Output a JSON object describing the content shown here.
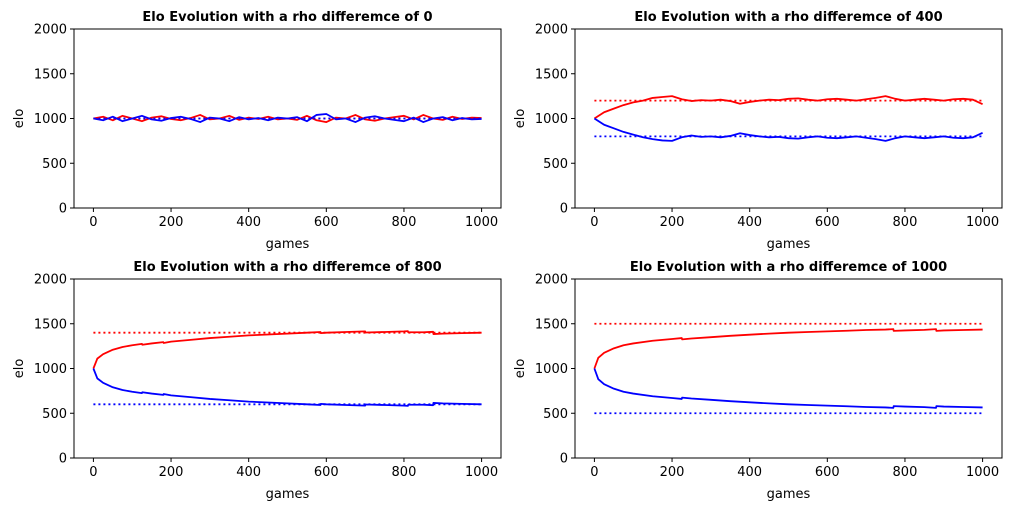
{
  "colors": {
    "series_a": "#ff0000",
    "series_b": "#0000ff",
    "axes": "#000000",
    "background": "#ffffff"
  },
  "chart_data": [
    {
      "type": "line",
      "title": "Elo Evolution with a rho differemce of 0",
      "xlabel": "games",
      "ylabel": "elo",
      "xlim": [
        -50,
        1050
      ],
      "ylim": [
        0,
        2000
      ],
      "xticks": [
        0,
        200,
        400,
        600,
        800,
        1000
      ],
      "yticks": [
        0,
        500,
        1000,
        1500,
        2000
      ],
      "grid": false,
      "series": [
        {
          "color": "#ff0000",
          "style": "solid",
          "x": [
            0,
            25,
            50,
            75,
            100,
            125,
            150,
            175,
            200,
            225,
            250,
            275,
            300,
            325,
            350,
            375,
            400,
            425,
            450,
            475,
            500,
            525,
            550,
            575,
            600,
            625,
            650,
            675,
            700,
            725,
            750,
            775,
            800,
            825,
            850,
            875,
            900,
            925,
            950,
            975,
            1000
          ],
          "values": [
            1000,
            1020,
            980,
            1030,
            1000,
            970,
            1010,
            1025,
            995,
            980,
            1005,
            1040,
            990,
            1000,
            1030,
            985,
            1010,
            995,
            1020,
            990,
            1000,
            985,
            1030,
            980,
            960,
            1010,
            1000,
            1040,
            990,
            975,
            1000,
            1015,
            1030,
            990,
            1040,
            1000,
            985,
            1020,
            995,
            1010,
            1005
          ]
        },
        {
          "color": "#0000ff",
          "style": "solid",
          "x": [
            0,
            25,
            50,
            75,
            100,
            125,
            150,
            175,
            200,
            225,
            250,
            275,
            300,
            325,
            350,
            375,
            400,
            425,
            450,
            475,
            500,
            525,
            550,
            575,
            600,
            625,
            650,
            675,
            700,
            725,
            750,
            775,
            800,
            825,
            850,
            875,
            900,
            925,
            950,
            975,
            1000
          ],
          "values": [
            1000,
            980,
            1020,
            970,
            1000,
            1030,
            990,
            975,
            1005,
            1020,
            995,
            960,
            1010,
            1000,
            970,
            1015,
            990,
            1005,
            980,
            1010,
            1000,
            1015,
            970,
            1040,
            1050,
            990,
            1000,
            960,
            1010,
            1025,
            1000,
            985,
            970,
            1010,
            960,
            1000,
            1015,
            980,
            1005,
            990,
            995
          ]
        },
        {
          "color": "#ff0000",
          "style": "dotted",
          "x": [
            0,
            1000
          ],
          "values": [
            1000,
            1000
          ]
        },
        {
          "color": "#0000ff",
          "style": "dotted",
          "x": [
            0,
            1000
          ],
          "values": [
            1000,
            1000
          ]
        }
      ]
    },
    {
      "type": "line",
      "title": "Elo Evolution with a rho differemce of 400",
      "xlabel": "games",
      "ylabel": "elo",
      "xlim": [
        -50,
        1050
      ],
      "ylim": [
        0,
        2000
      ],
      "xticks": [
        0,
        200,
        400,
        600,
        800,
        1000
      ],
      "yticks": [
        0,
        500,
        1000,
        1500,
        2000
      ],
      "grid": false,
      "series": [
        {
          "color": "#ff0000",
          "style": "solid",
          "x": [
            0,
            25,
            50,
            75,
            100,
            125,
            150,
            175,
            200,
            225,
            250,
            275,
            300,
            325,
            350,
            375,
            400,
            425,
            450,
            475,
            500,
            525,
            550,
            575,
            600,
            625,
            650,
            675,
            700,
            725,
            750,
            775,
            800,
            825,
            850,
            875,
            900,
            925,
            950,
            975,
            1000
          ],
          "values": [
            1000,
            1070,
            1110,
            1150,
            1180,
            1200,
            1230,
            1240,
            1250,
            1215,
            1195,
            1205,
            1200,
            1210,
            1195,
            1165,
            1185,
            1200,
            1210,
            1205,
            1220,
            1225,
            1210,
            1200,
            1215,
            1220,
            1210,
            1200,
            1215,
            1230,
            1250,
            1220,
            1200,
            1210,
            1220,
            1210,
            1200,
            1215,
            1220,
            1210,
            1160
          ]
        },
        {
          "color": "#0000ff",
          "style": "solid",
          "x": [
            0,
            25,
            50,
            75,
            100,
            125,
            150,
            175,
            200,
            225,
            250,
            275,
            300,
            325,
            350,
            375,
            400,
            425,
            450,
            475,
            500,
            525,
            550,
            575,
            600,
            625,
            650,
            675,
            700,
            725,
            750,
            775,
            800,
            825,
            850,
            875,
            900,
            925,
            950,
            975,
            1000
          ],
          "values": [
            1000,
            930,
            890,
            850,
            820,
            790,
            770,
            755,
            750,
            790,
            810,
            795,
            800,
            790,
            805,
            835,
            815,
            800,
            790,
            795,
            780,
            775,
            790,
            800,
            785,
            780,
            790,
            800,
            785,
            770,
            750,
            780,
            800,
            790,
            780,
            790,
            800,
            785,
            780,
            790,
            840
          ]
        },
        {
          "color": "#ff0000",
          "style": "dotted",
          "x": [
            0,
            1000
          ],
          "values": [
            1200,
            1200
          ]
        },
        {
          "color": "#0000ff",
          "style": "dotted",
          "x": [
            0,
            1000
          ],
          "values": [
            800,
            800
          ]
        }
      ]
    },
    {
      "type": "line",
      "title": "Elo Evolution with a rho differemce of 800",
      "xlabel": "games",
      "ylabel": "elo",
      "xlim": [
        -50,
        1050
      ],
      "ylim": [
        0,
        2000
      ],
      "xticks": [
        0,
        200,
        400,
        600,
        800,
        1000
      ],
      "yticks": [
        0,
        500,
        1000,
        1500,
        2000
      ],
      "grid": false,
      "series": [
        {
          "color": "#ff0000",
          "style": "solid",
          "x": [
            0,
            10,
            25,
            50,
            75,
            100,
            125,
            126,
            150,
            180,
            181,
            200,
            250,
            300,
            350,
            400,
            450,
            500,
            550,
            585,
            586,
            600,
            650,
            700,
            701,
            750,
            800,
            810,
            811,
            850,
            875,
            876,
            900,
            950,
            1000
          ],
          "values": [
            1000,
            1110,
            1160,
            1210,
            1240,
            1260,
            1275,
            1265,
            1280,
            1295,
            1285,
            1300,
            1320,
            1340,
            1355,
            1370,
            1380,
            1390,
            1400,
            1408,
            1395,
            1400,
            1408,
            1415,
            1402,
            1408,
            1415,
            1418,
            1405,
            1405,
            1410,
            1385,
            1390,
            1395,
            1400
          ]
        },
        {
          "color": "#0000ff",
          "style": "solid",
          "x": [
            0,
            10,
            25,
            50,
            75,
            100,
            125,
            126,
            150,
            180,
            181,
            200,
            250,
            300,
            350,
            400,
            450,
            500,
            550,
            585,
            586,
            600,
            650,
            700,
            701,
            750,
            800,
            810,
            811,
            850,
            875,
            876,
            900,
            950,
            1000
          ],
          "values": [
            1000,
            890,
            840,
            790,
            760,
            740,
            725,
            735,
            720,
            705,
            715,
            700,
            680,
            660,
            645,
            630,
            620,
            610,
            600,
            592,
            605,
            600,
            592,
            585,
            598,
            592,
            585,
            582,
            595,
            595,
            590,
            615,
            610,
            605,
            600
          ]
        },
        {
          "color": "#ff0000",
          "style": "dotted",
          "x": [
            0,
            1000
          ],
          "values": [
            1400,
            1400
          ]
        },
        {
          "color": "#0000ff",
          "style": "dotted",
          "x": [
            0,
            1000
          ],
          "values": [
            600,
            600
          ]
        }
      ]
    },
    {
      "type": "line",
      "title": "Elo Evolution with a rho differemce of 1000",
      "xlabel": "games",
      "ylabel": "elo",
      "xlim": [
        -50,
        1050
      ],
      "ylim": [
        0,
        2000
      ],
      "xticks": [
        0,
        200,
        400,
        600,
        800,
        1000
      ],
      "yticks": [
        0,
        500,
        1000,
        1500,
        2000
      ],
      "grid": false,
      "series": [
        {
          "color": "#ff0000",
          "style": "solid",
          "x": [
            0,
            10,
            25,
            50,
            75,
            100,
            150,
            200,
            225,
            226,
            250,
            300,
            350,
            400,
            450,
            500,
            550,
            600,
            650,
            700,
            750,
            770,
            771,
            800,
            850,
            880,
            881,
            900,
            950,
            1000
          ],
          "values": [
            1000,
            1120,
            1175,
            1225,
            1260,
            1280,
            1310,
            1330,
            1340,
            1325,
            1335,
            1350,
            1365,
            1378,
            1390,
            1400,
            1408,
            1415,
            1422,
            1430,
            1435,
            1440,
            1420,
            1425,
            1432,
            1440,
            1420,
            1425,
            1430,
            1435
          ]
        },
        {
          "color": "#0000ff",
          "style": "solid",
          "x": [
            0,
            10,
            25,
            50,
            75,
            100,
            150,
            200,
            225,
            226,
            250,
            300,
            350,
            400,
            450,
            500,
            550,
            600,
            650,
            700,
            750,
            770,
            771,
            800,
            850,
            880,
            881,
            900,
            950,
            1000
          ],
          "values": [
            1000,
            880,
            825,
            775,
            740,
            720,
            690,
            670,
            660,
            675,
            665,
            650,
            635,
            622,
            610,
            600,
            592,
            585,
            578,
            570,
            565,
            560,
            580,
            575,
            568,
            560,
            580,
            575,
            570,
            565
          ]
        },
        {
          "color": "#ff0000",
          "style": "dotted",
          "x": [
            0,
            1000
          ],
          "values": [
            1500,
            1500
          ]
        },
        {
          "color": "#0000ff",
          "style": "dotted",
          "x": [
            0,
            1000
          ],
          "values": [
            500,
            500
          ]
        }
      ]
    }
  ]
}
